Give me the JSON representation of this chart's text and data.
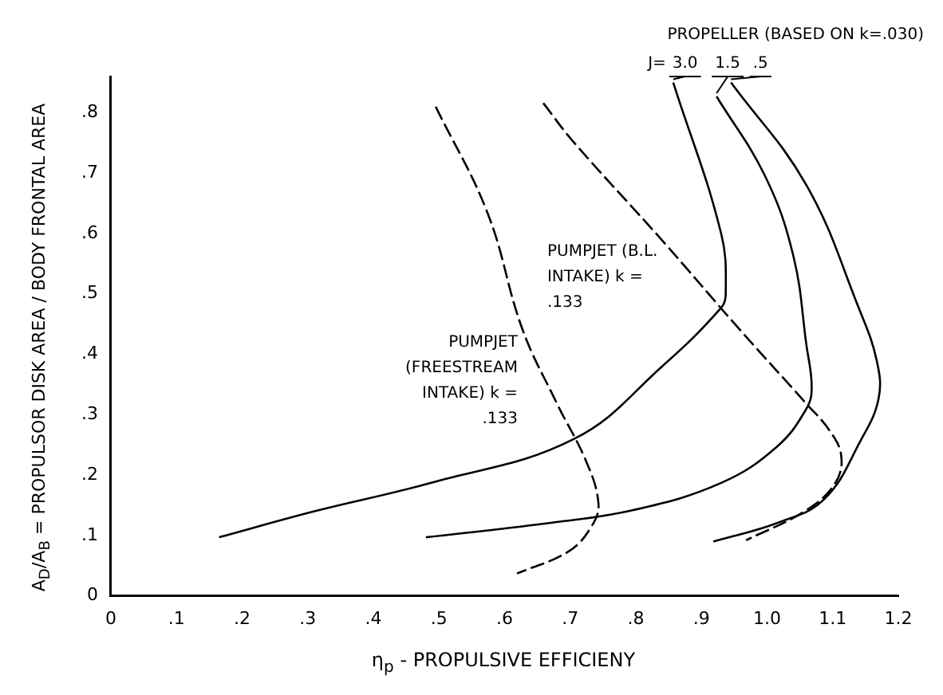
{
  "chart_data": {
    "type": "line",
    "xlabel": "η$_{p}$ - PROPULSIVE EFFICIENY",
    "ylabel": "A$_{D}$/A$_{B}$ = PROPULSOR DISK AREA / BODY FRONTAL AREA",
    "xlim": [
      0,
      1.2
    ],
    "ylim": [
      0,
      0.86
    ],
    "xticks": [
      0,
      {
        "value": 0.1,
        "label": ".1"
      },
      {
        "value": 0.2,
        "label": ".2"
      },
      {
        "value": 0.3,
        "label": ".3"
      },
      {
        "value": 0.4,
        "label": ".4"
      },
      {
        "value": 0.5,
        "label": ".5"
      },
      {
        "value": 0.6,
        "label": ".6"
      },
      {
        "value": 0.7,
        "label": ".7"
      },
      {
        "value": 0.8,
        "label": ".8"
      },
      {
        "value": 0.9,
        "label": ".9"
      },
      {
        "value": 1,
        "label": "1.0"
      },
      1.1,
      1.2
    ],
    "yticks": [
      0,
      {
        "value": 0.1,
        "label": ".1"
      },
      {
        "value": 0.2,
        "label": ".2"
      },
      {
        "value": 0.3,
        "label": ".3"
      },
      {
        "value": 0.4,
        "label": ".4"
      },
      {
        "value": 0.5,
        "label": ".5"
      },
      {
        "value": 0.6,
        "label": ".6"
      },
      {
        "value": 0.7,
        "label": ".7"
      },
      {
        "value": 0.8,
        "label": ".8"
      }
    ],
    "grid": false,
    "legend": false,
    "marker": "none",
    "annotations": [
      "PROPELLER (BASED ON k=.030)",
      "J="
    ],
    "series": [
      {
        "name": "3.0",
        "color": "#000000",
        "line_style": "solid",
        "x": [
          0.857,
          0.93,
          0.937,
          0.93,
          0.84,
          0.706,
          0.487,
          0.31,
          0.165
        ],
        "values": [
          0.85,
          0.6,
          0.5,
          0.477,
          0.38,
          0.26,
          0.187,
          0.14,
          0.097
        ]
      },
      {
        "name": "1.5",
        "color": "#000000",
        "line_style": "solid",
        "x": [
          0.923,
          0.997,
          1.04,
          1.06,
          1.068,
          1.06,
          1.015,
          0.93,
          0.796,
          0.663,
          0.48
        ],
        "values": [
          0.827,
          0.695,
          0.563,
          0.415,
          0.345,
          0.31,
          0.247,
          0.187,
          0.142,
          0.12,
          0.097
        ]
      },
      {
        "name": ".5",
        "color": "#000000",
        "line_style": "solid",
        "x": [
          0.945,
          1.06,
          1.14,
          1.167,
          1.17,
          1.143,
          1.087,
          1.016,
          0.918
        ],
        "values": [
          0.85,
          0.68,
          0.476,
          0.39,
          0.327,
          0.258,
          0.16,
          0.121,
          0.09
        ]
      },
      {
        "name": "PUMPJET (B.L. INTAKE) k = .133",
        "color": "#000000",
        "line_style": "dashed",
        "x": [
          0.659,
          0.704,
          0.839,
          0.955,
          1.06,
          1.095,
          1.113,
          1.104,
          1.06,
          0.968
        ],
        "values": [
          0.816,
          0.753,
          0.59,
          0.445,
          0.318,
          0.274,
          0.232,
          0.187,
          0.142,
          0.092
        ]
      },
      {
        "name": "PUMPJET (FREESTREAM INTAKE) k = .133",
        "color": "#000000",
        "line_style": "dashed",
        "x": [
          0.495,
          0.574,
          0.627,
          0.68,
          0.725,
          0.743,
          0.733,
          0.698,
          0.619
        ],
        "values": [
          0.81,
          0.634,
          0.442,
          0.318,
          0.221,
          0.153,
          0.116,
          0.074,
          0.037
        ]
      }
    ]
  }
}
